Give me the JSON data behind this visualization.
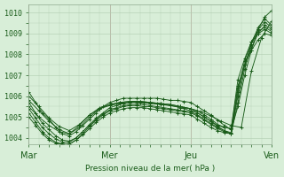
{
  "bg_color": "#d8eed8",
  "grid_color": "#b0ccb0",
  "line_color": "#1a5c1a",
  "ylabel_values": [
    1004,
    1005,
    1006,
    1007,
    1008,
    1009,
    1010
  ],
  "xtick_labels": [
    "Mar",
    "Mer",
    "Jeu",
    "Ven"
  ],
  "xtick_positions": [
    0,
    96,
    192,
    288
  ],
  "xlabel": "Pression niveau de la mer( hPa )",
  "xmax": 288,
  "ymin": 1003.7,
  "ymax": 1010.4,
  "series": [
    {
      "x": [
        0,
        8,
        16,
        24,
        32,
        40,
        48,
        56,
        64,
        72,
        80,
        88,
        96,
        104,
        112,
        120,
        128,
        136,
        144,
        152,
        160,
        168,
        176,
        184,
        192,
        200,
        208,
        216,
        224,
        232,
        240,
        248,
        256,
        264,
        272,
        280,
        288
      ],
      "y": [
        1006.2,
        1005.7,
        1005.2,
        1004.9,
        1004.5,
        1004.2,
        1004.1,
        1004.3,
        1004.6,
        1004.9,
        1005.2,
        1005.5,
        1005.7,
        1005.8,
        1005.9,
        1005.9,
        1005.9,
        1005.9,
        1005.9,
        1005.9,
        1005.85,
        1005.8,
        1005.8,
        1005.75,
        1005.7,
        1005.5,
        1005.3,
        1005.1,
        1004.85,
        1004.6,
        1004.4,
        1005.5,
        1007.0,
        1008.2,
        1009.2,
        1009.8,
        1010.1
      ]
    },
    {
      "x": [
        0,
        8,
        16,
        24,
        32,
        40,
        48,
        56,
        64,
        72,
        80,
        88,
        96,
        104,
        112,
        120,
        128,
        136,
        144,
        152,
        160,
        168,
        176,
        184,
        192,
        200,
        208,
        216,
        224,
        232,
        240,
        248,
        256,
        264,
        272,
        280,
        288
      ],
      "y": [
        1005.7,
        1005.2,
        1004.7,
        1004.4,
        1004.1,
        1003.9,
        1003.85,
        1004.0,
        1004.3,
        1004.65,
        1004.95,
        1005.2,
        1005.45,
        1005.55,
        1005.65,
        1005.7,
        1005.7,
        1005.7,
        1005.7,
        1005.65,
        1005.6,
        1005.55,
        1005.5,
        1005.45,
        1005.4,
        1005.2,
        1005.0,
        1004.8,
        1004.55,
        1004.35,
        1004.2,
        1005.7,
        1007.3,
        1008.5,
        1009.3,
        1009.7,
        1009.4
      ]
    },
    {
      "x": [
        0,
        8,
        16,
        24,
        32,
        40,
        48,
        56,
        64,
        72,
        80,
        88,
        96,
        104,
        112,
        120,
        128,
        136,
        144,
        152,
        160,
        168,
        176,
        184,
        192,
        200,
        208,
        216,
        224,
        232,
        240,
        248,
        256,
        264,
        272,
        280,
        288
      ],
      "y": [
        1005.4,
        1004.95,
        1004.5,
        1004.2,
        1003.95,
        1003.8,
        1003.8,
        1004.0,
        1004.3,
        1004.6,
        1004.9,
        1005.15,
        1005.35,
        1005.45,
        1005.55,
        1005.6,
        1005.6,
        1005.6,
        1005.55,
        1005.5,
        1005.45,
        1005.4,
        1005.35,
        1005.3,
        1005.25,
        1005.1,
        1004.9,
        1004.7,
        1004.5,
        1004.35,
        1004.25,
        1006.0,
        1007.5,
        1008.5,
        1009.1,
        1009.3,
        1009.1
      ]
    },
    {
      "x": [
        0,
        8,
        16,
        24,
        32,
        40,
        48,
        56,
        64,
        72,
        80,
        88,
        96,
        104,
        112,
        120,
        128,
        136,
        144,
        152,
        160,
        168,
        176,
        184,
        192,
        200,
        208,
        216,
        224,
        232,
        240,
        248,
        256,
        264,
        272,
        280,
        288
      ],
      "y": [
        1005.2,
        1004.75,
        1004.3,
        1004.0,
        1003.8,
        1003.7,
        1003.7,
        1003.9,
        1004.2,
        1004.55,
        1004.85,
        1005.1,
        1005.3,
        1005.4,
        1005.5,
        1005.55,
        1005.55,
        1005.5,
        1005.5,
        1005.45,
        1005.4,
        1005.35,
        1005.3,
        1005.25,
        1005.2,
        1005.05,
        1004.85,
        1004.65,
        1004.45,
        1004.3,
        1004.2,
        1006.2,
        1007.7,
        1008.6,
        1009.0,
        1009.2,
        1009.0
      ]
    },
    {
      "x": [
        0,
        8,
        16,
        24,
        32,
        40,
        48,
        56,
        64,
        72,
        80,
        88,
        96,
        104,
        112,
        120,
        128,
        136,
        144,
        152,
        160,
        168,
        176,
        184,
        192,
        200,
        208,
        216,
        224,
        232,
        240,
        248,
        256,
        264,
        272,
        280,
        288
      ],
      "y": [
        1005.0,
        1004.6,
        1004.2,
        1003.9,
        1003.75,
        1003.7,
        1003.7,
        1003.9,
        1004.15,
        1004.45,
        1004.75,
        1005.0,
        1005.2,
        1005.3,
        1005.4,
        1005.45,
        1005.45,
        1005.45,
        1005.4,
        1005.35,
        1005.3,
        1005.25,
        1005.2,
        1005.15,
        1005.1,
        1004.9,
        1004.7,
        1004.5,
        1004.35,
        1004.25,
        1004.2,
        1006.4,
        1007.5,
        1008.2,
        1008.7,
        1009.0,
        1008.9
      ]
    },
    {
      "x": [
        0,
        12,
        24,
        36,
        48,
        60,
        72,
        84,
        96,
        108,
        120,
        132,
        144,
        156,
        168,
        180,
        192,
        200,
        208,
        216,
        224,
        232,
        240,
        248,
        256,
        264,
        272,
        280,
        288
      ],
      "y": [
        1005.8,
        1005.3,
        1004.8,
        1004.4,
        1004.2,
        1004.5,
        1005.0,
        1005.4,
        1005.6,
        1005.7,
        1005.75,
        1005.75,
        1005.7,
        1005.65,
        1005.6,
        1005.5,
        1005.4,
        1005.3,
        1005.1,
        1004.9,
        1004.65,
        1004.5,
        1004.45,
        1006.8,
        1007.8,
        1008.6,
        1009.2,
        1009.55,
        1009.3
      ]
    },
    {
      "x": [
        0,
        12,
        24,
        36,
        48,
        60,
        72,
        84,
        96,
        108,
        120,
        132,
        144,
        156,
        168,
        180,
        192,
        200,
        208,
        216,
        224,
        232,
        240,
        248,
        256,
        264,
        272,
        280,
        288
      ],
      "y": [
        1005.5,
        1005.0,
        1004.6,
        1004.3,
        1004.2,
        1004.6,
        1005.1,
        1005.4,
        1005.55,
        1005.65,
        1005.7,
        1005.7,
        1005.65,
        1005.6,
        1005.55,
        1005.45,
        1005.3,
        1005.2,
        1005.0,
        1004.8,
        1004.6,
        1004.5,
        1004.45,
        1006.5,
        1007.5,
        1008.3,
        1009.0,
        1009.4,
        1009.2
      ]
    },
    {
      "x": [
        0,
        12,
        24,
        36,
        48,
        60,
        72,
        84,
        96,
        108,
        120,
        132,
        144,
        156,
        168,
        180,
        192,
        204,
        216,
        228,
        240,
        252,
        264,
        276,
        288
      ],
      "y": [
        1006.0,
        1005.5,
        1004.95,
        1004.55,
        1004.35,
        1004.65,
        1005.1,
        1005.45,
        1005.6,
        1005.7,
        1005.75,
        1005.75,
        1005.7,
        1005.65,
        1005.6,
        1005.5,
        1005.4,
        1005.25,
        1005.05,
        1004.8,
        1004.6,
        1004.5,
        1007.2,
        1008.8,
        1009.6
      ]
    }
  ]
}
